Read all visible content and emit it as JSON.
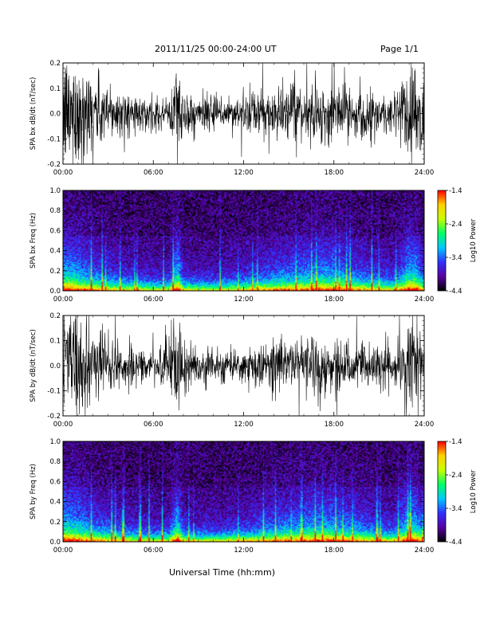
{
  "header": {
    "title": "2011/11/25  00:00-24:00 UT",
    "page": "Page 1/1"
  },
  "x_axis": {
    "title": "Universal Time (hh:mm)",
    "ticks": [
      "00:00",
      "06:00",
      "12:00",
      "18:00",
      "24:00"
    ]
  },
  "colorbar": {
    "label": "Log10 Power",
    "ticks": [
      "-1.4",
      "-2.4",
      "-3.4",
      "-4.4"
    ],
    "colors": [
      "#000000",
      "#5a00a0",
      "#3030ff",
      "#00c8ff",
      "#00ff64",
      "#c8ff00",
      "#ffd200",
      "#ff0000"
    ]
  },
  "chart_data": [
    {
      "type": "line",
      "title": "",
      "ylabel": "SPA bx dB/dt (nT/sec)",
      "xlabel": "",
      "xlim": [
        "00:00",
        "24:00"
      ],
      "ylim": [
        -0.2,
        0.2
      ],
      "yticks": [
        "0.2",
        "0.1",
        "0.0",
        "-0.1",
        "-0.2"
      ],
      "series": [
        {
          "hours": [
            0,
            1,
            2,
            3,
            4,
            5,
            6,
            7,
            7.6,
            8,
            9,
            10,
            11,
            12,
            13,
            14,
            15,
            16,
            17,
            18,
            19,
            20,
            21,
            22,
            23,
            23.5,
            24
          ],
          "amplitude": [
            0.2,
            0.2,
            0.15,
            0.1,
            0.08,
            0.06,
            0.05,
            0.05,
            0.2,
            0.08,
            0.06,
            0.06,
            0.06,
            0.07,
            0.08,
            0.09,
            0.09,
            0.09,
            0.1,
            0.1,
            0.09,
            0.08,
            0.08,
            0.07,
            0.2,
            0.2,
            0.1
          ]
        }
      ]
    },
    {
      "type": "heatmap",
      "title": "",
      "ylabel": "SPA bx Freq (Hz)",
      "xlabel": "",
      "xlim": [
        "00:00",
        "24:00"
      ],
      "ylim": [
        0.0,
        1.0
      ],
      "yticks": [
        "1.0",
        "0.8",
        "0.6",
        "0.4",
        "0.2",
        "0.0"
      ],
      "zlim": [
        -4.4,
        -1.4
      ],
      "zlabel": "Log10 Power",
      "activity_hours": [
        0,
        1,
        2,
        3,
        4,
        5,
        6,
        7,
        7.6,
        8,
        9,
        10,
        11,
        12,
        13,
        14,
        15,
        16,
        17,
        18,
        19,
        20,
        21,
        22,
        23,
        23.5,
        24
      ],
      "activity_level": [
        0.9,
        0.8,
        0.6,
        0.5,
        0.4,
        0.35,
        0.3,
        0.3,
        0.95,
        0.35,
        0.3,
        0.3,
        0.35,
        0.4,
        0.5,
        0.6,
        0.65,
        0.7,
        0.75,
        0.75,
        0.65,
        0.55,
        0.45,
        0.4,
        0.9,
        0.85,
        0.5
      ]
    },
    {
      "type": "line",
      "title": "",
      "ylabel": "SPA by dB/dt (nT/sec)",
      "xlabel": "",
      "xlim": [
        "00:00",
        "24:00"
      ],
      "ylim": [
        -0.2,
        0.2
      ],
      "yticks": [
        "0.2",
        "0.1",
        "0.0",
        "-0.1",
        "-0.2"
      ],
      "series": [
        {
          "hours": [
            0,
            1,
            2,
            3,
            4,
            5,
            6,
            7,
            7.6,
            8,
            9,
            10,
            11,
            12,
            13,
            14,
            15,
            16,
            17,
            18,
            19,
            20,
            21,
            22,
            23,
            23.5,
            24
          ],
          "amplitude": [
            0.2,
            0.2,
            0.15,
            0.1,
            0.08,
            0.06,
            0.05,
            0.12,
            0.2,
            0.08,
            0.07,
            0.07,
            0.06,
            0.07,
            0.08,
            0.1,
            0.1,
            0.09,
            0.12,
            0.1,
            0.09,
            0.08,
            0.08,
            0.07,
            0.2,
            0.2,
            0.1
          ]
        }
      ]
    },
    {
      "type": "heatmap",
      "title": "",
      "ylabel": "SPA by Freq (Hz)",
      "xlabel": "",
      "xlim": [
        "00:00",
        "24:00"
      ],
      "ylim": [
        0.0,
        1.0
      ],
      "yticks": [
        "1.0",
        "0.8",
        "0.6",
        "0.4",
        "0.2",
        "0.0"
      ],
      "zlim": [
        -4.4,
        -1.4
      ],
      "zlabel": "Log10 Power",
      "activity_hours": [
        0,
        1,
        2,
        3,
        4,
        5,
        6,
        7,
        7.6,
        8,
        9,
        10,
        11,
        12,
        13,
        14,
        15,
        16,
        17,
        18,
        19,
        20,
        21,
        22,
        23,
        23.5,
        24
      ],
      "activity_level": [
        0.9,
        0.8,
        0.6,
        0.5,
        0.4,
        0.35,
        0.3,
        0.35,
        0.95,
        0.35,
        0.3,
        0.3,
        0.35,
        0.4,
        0.5,
        0.6,
        0.65,
        0.7,
        0.75,
        0.75,
        0.65,
        0.55,
        0.45,
        0.4,
        0.9,
        0.85,
        0.5
      ]
    }
  ]
}
